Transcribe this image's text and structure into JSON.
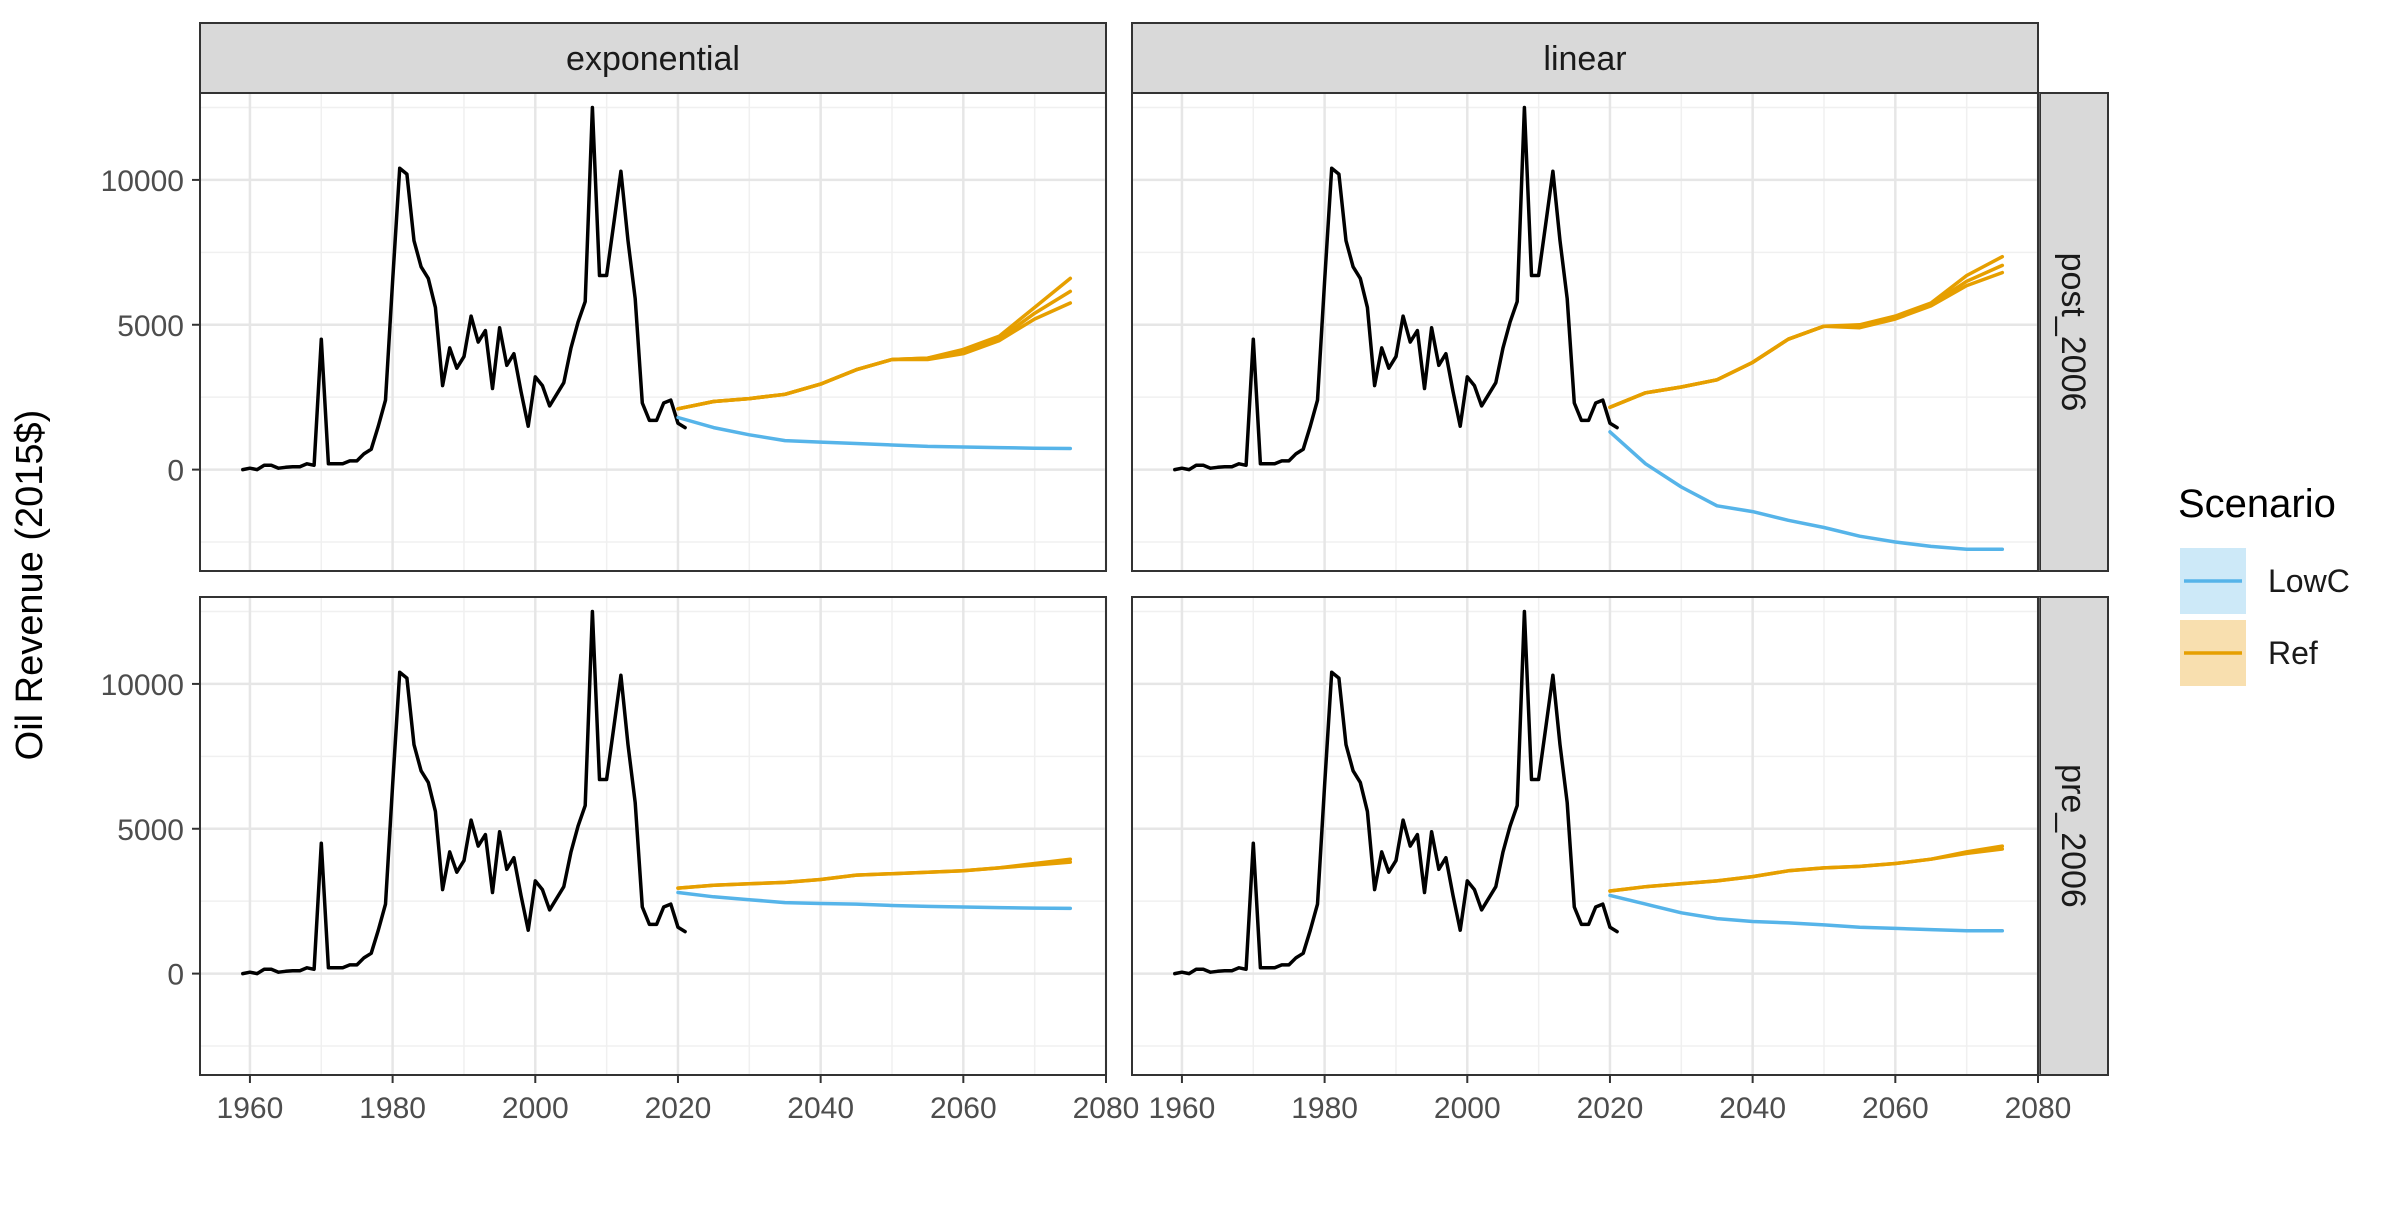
{
  "chart_data": {
    "type": "line",
    "ylabel": "Oil Revenue (2015$)",
    "xlim": [
      1953,
      2080
    ],
    "ylim": [
      -3500,
      13000
    ],
    "x_ticks": [
      1960,
      1980,
      2000,
      2020,
      2040,
      2060,
      2080
    ],
    "y_ticks": [
      0,
      5000,
      10000
    ],
    "grid": true,
    "legend_position": "right",
    "legend": {
      "title": "Scenario",
      "entries": [
        {
          "label": "LowC",
          "color": "#56B4E9",
          "fill": "#CDE9F8"
        },
        {
          "label": "Ref",
          "color": "#E69F00",
          "fill": "#F8DFAF"
        }
      ]
    },
    "facet_columns": [
      "exponential",
      "linear"
    ],
    "facet_rows": [
      "post_2006",
      "pre_2006"
    ],
    "historical": {
      "name": "",
      "color": "#000000",
      "x": [
        1959,
        1960,
        1961,
        1962,
        1963,
        1964,
        1965,
        1966,
        1967,
        1968,
        1969,
        1970,
        1971,
        1972,
        1973,
        1974,
        1975,
        1976,
        1977,
        1978,
        1979,
        1980,
        1981,
        1982,
        1983,
        1984,
        1985,
        1986,
        1987,
        1988,
        1989,
        1990,
        1991,
        1992,
        1993,
        1994,
        1995,
        1996,
        1997,
        1998,
        1999,
        2000,
        2001,
        2002,
        2003,
        2004,
        2005,
        2006,
        2007,
        2008,
        2009,
        2010,
        2011,
        2012,
        2013,
        2014,
        2015,
        2016,
        2017,
        2018,
        2019,
        2020,
        2021
      ],
      "y": [
        0,
        50,
        0,
        150,
        150,
        50,
        80,
        100,
        100,
        200,
        150,
        4500,
        200,
        200,
        200,
        300,
        300,
        550,
        700,
        1500,
        2400,
        6500,
        10400,
        10200,
        7900,
        7000,
        6600,
        5600,
        2900,
        4200,
        3500,
        3900,
        5300,
        4400,
        4800,
        2800,
        4900,
        3600,
        4000,
        2700,
        1500,
        3200,
        2900,
        2200,
        2600,
        3000,
        4200,
        5100,
        5800,
        12500,
        6700,
        6700,
        8500,
        10300,
        7900,
        5900,
        2300,
        1700,
        1700,
        2300,
        2400,
        1600,
        1450
      ]
    },
    "panels": [
      {
        "column": "exponential",
        "row": "post_2006",
        "series": [
          {
            "name": "LowC",
            "x": [
              2020,
              2025,
              2030,
              2035,
              2040,
              2045,
              2050,
              2055,
              2060,
              2065,
              2070,
              2075
            ],
            "y": [
              1800,
              1450,
              1200,
              1000,
              950,
              900,
              850,
              800,
              780,
              760,
              740,
              730
            ]
          },
          {
            "name": "Ref",
            "x": [
              2020,
              2025,
              2030,
              2035,
              2040,
              2045,
              2050,
              2055,
              2060,
              2065,
              2070,
              2075
            ],
            "y": [
              2100,
              2350,
              2450,
              2600,
              2950,
              3450,
              3800,
              3850,
              4150,
              4600,
              5600,
              6600
            ]
          },
          {
            "name": "Ref",
            "x": [
              2020,
              2025,
              2030,
              2035,
              2040,
              2045,
              2050,
              2055,
              2060,
              2065,
              2070,
              2075
            ],
            "y": [
              2100,
              2350,
              2450,
              2600,
              2950,
              3450,
              3800,
              3850,
              4050,
              4500,
              5400,
              6150
            ]
          },
          {
            "name": "Ref",
            "x": [
              2020,
              2025,
              2030,
              2035,
              2040,
              2045,
              2050,
              2055,
              2060,
              2065,
              2070,
              2075
            ],
            "y": [
              2100,
              2350,
              2450,
              2600,
              2950,
              3450,
              3800,
              3800,
              4000,
              4450,
              5200,
              5750
            ]
          }
        ]
      },
      {
        "column": "linear",
        "row": "post_2006",
        "series": [
          {
            "name": "LowC",
            "x": [
              2020,
              2025,
              2030,
              2035,
              2040,
              2045,
              2050,
              2055,
              2060,
              2065,
              2070,
              2075
            ],
            "y": [
              1300,
              200,
              -600,
              -1250,
              -1450,
              -1750,
              -2000,
              -2300,
              -2500,
              -2650,
              -2750,
              -2750
            ]
          },
          {
            "name": "Ref",
            "x": [
              2020,
              2025,
              2030,
              2035,
              2040,
              2045,
              2050,
              2055,
              2060,
              2065,
              2070,
              2075
            ],
            "y": [
              2150,
              2650,
              2850,
              3100,
              3700,
              4500,
              4950,
              5000,
              5300,
              5750,
              6700,
              7350
            ]
          },
          {
            "name": "Ref",
            "x": [
              2020,
              2025,
              2030,
              2035,
              2040,
              2045,
              2050,
              2055,
              2060,
              2065,
              2070,
              2075
            ],
            "y": [
              2150,
              2650,
              2850,
              3100,
              3700,
              4500,
              4950,
              4950,
              5250,
              5700,
              6500,
              7050
            ]
          },
          {
            "name": "Ref",
            "x": [
              2020,
              2025,
              2030,
              2035,
              2040,
              2045,
              2050,
              2055,
              2060,
              2065,
              2070,
              2075
            ],
            "y": [
              2150,
              2650,
              2850,
              3100,
              3700,
              4500,
              4950,
              4900,
              5200,
              5650,
              6350,
              6800
            ]
          }
        ]
      },
      {
        "column": "exponential",
        "row": "pre_2006",
        "series": [
          {
            "name": "LowC",
            "x": [
              2020,
              2025,
              2030,
              2035,
              2040,
              2045,
              2050,
              2055,
              2060,
              2065,
              2070,
              2075
            ],
            "y": [
              2800,
              2650,
              2550,
              2450,
              2420,
              2400,
              2350,
              2320,
              2300,
              2280,
              2260,
              2250
            ]
          },
          {
            "name": "Ref",
            "x": [
              2020,
              2025,
              2030,
              2035,
              2040,
              2045,
              2050,
              2055,
              2060,
              2065,
              2070,
              2075
            ],
            "y": [
              2950,
              3050,
              3100,
              3150,
              3250,
              3400,
              3450,
              3500,
              3550,
              3650,
              3800,
              3950
            ]
          },
          {
            "name": "Ref",
            "x": [
              2020,
              2025,
              2030,
              2035,
              2040,
              2045,
              2050,
              2055,
              2060,
              2065,
              2070,
              2075
            ],
            "y": [
              2950,
              3050,
              3100,
              3150,
              3250,
              3400,
              3450,
              3500,
              3550,
              3650,
              3750,
              3850
            ]
          }
        ]
      },
      {
        "column": "linear",
        "row": "pre_2006",
        "series": [
          {
            "name": "LowC",
            "x": [
              2020,
              2025,
              2030,
              2035,
              2040,
              2045,
              2050,
              2055,
              2060,
              2065,
              2070,
              2075
            ],
            "y": [
              2700,
              2400,
              2100,
              1900,
              1800,
              1750,
              1680,
              1600,
              1560,
              1520,
              1480,
              1480
            ]
          },
          {
            "name": "Ref",
            "x": [
              2020,
              2025,
              2030,
              2035,
              2040,
              2045,
              2050,
              2055,
              2060,
              2065,
              2070,
              2075
            ],
            "y": [
              2850,
              3000,
              3100,
              3200,
              3350,
              3550,
              3650,
              3700,
              3800,
              3950,
              4200,
              4400
            ]
          },
          {
            "name": "Ref",
            "x": [
              2020,
              2025,
              2030,
              2035,
              2040,
              2045,
              2050,
              2055,
              2060,
              2065,
              2070,
              2075
            ],
            "y": [
              2850,
              3000,
              3100,
              3200,
              3350,
              3550,
              3650,
              3700,
              3800,
              3950,
              4150,
              4300
            ]
          }
        ]
      }
    ]
  }
}
